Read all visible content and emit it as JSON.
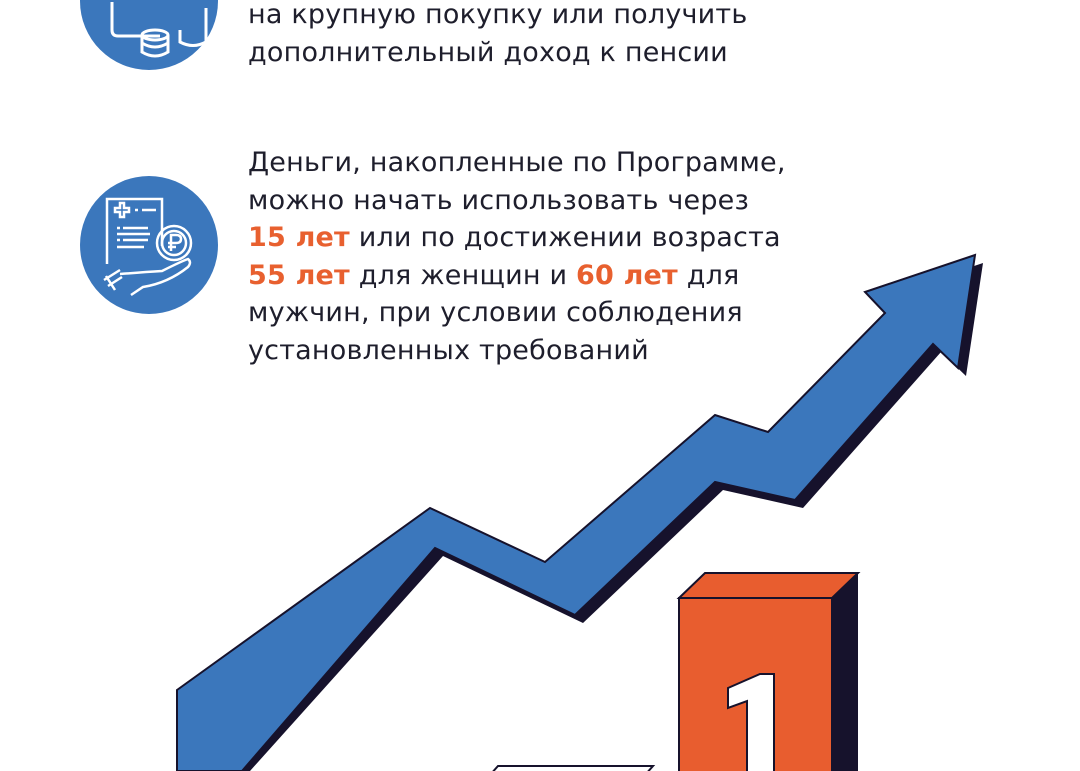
{
  "item1": {
    "icon": "coins-wallet-icon",
    "lines": [
      "на крупную покупку или получить",
      "дополнительный доход к пенсии"
    ]
  },
  "item2": {
    "icon": "document-hand-ruble-icon",
    "line1": "Деньги, накопленные по Программе,",
    "line2": "можно начать использовать через",
    "hl1": "15 лет",
    "line3_rest": " или по достижении возраста",
    "hl2": "55 лет",
    "line4_mid": " для женщин и ",
    "hl3": "60 лет",
    "line4_end": " для",
    "line5": "мужчин, при условии соблюдения",
    "line6": "установленных требований"
  },
  "illustration": {
    "arrow": "growth-arrow",
    "block_digit": "1",
    "colors": {
      "blue": "#3b77bc",
      "orange": "#e85d2f",
      "dark": "#16122c",
      "text": "#1e1e2c"
    }
  }
}
